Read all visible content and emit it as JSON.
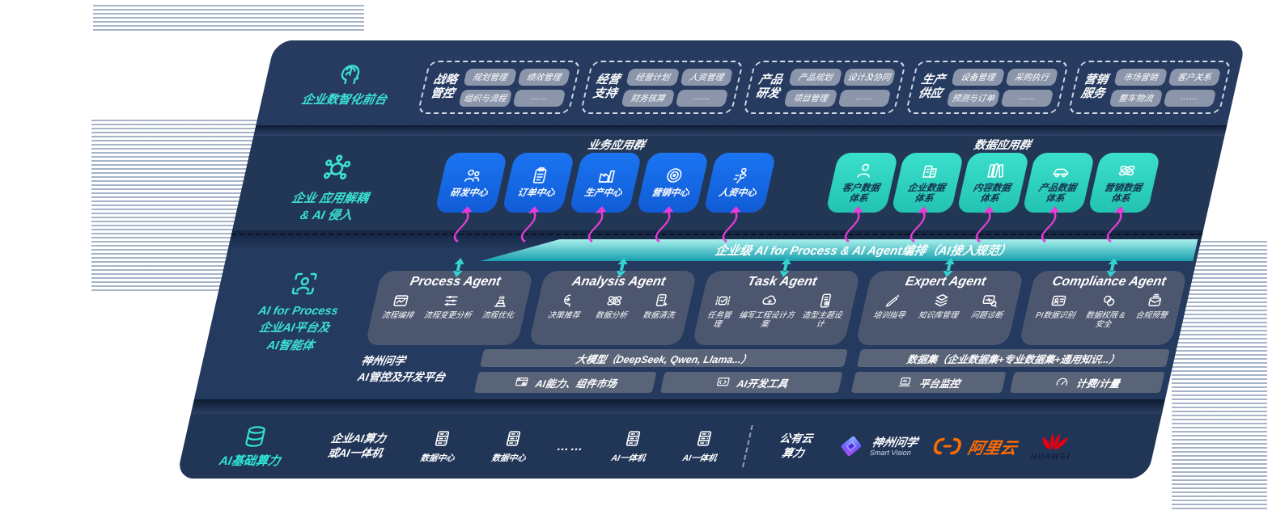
{
  "colors": {
    "panel_navy": "#24395c",
    "accent_teal": "#3be2d4",
    "box_blue": "#1668e3",
    "box_teal": "#2fd6c3",
    "bus_bar_teal": "#18a2b0",
    "arrow_magenta": "#e93cd7",
    "alibaba_orange": "#ff6c00",
    "huawei_red": "#e60012"
  },
  "front_layer": {
    "label": "企业数智化前台",
    "groups": [
      {
        "title": "战略\n管控",
        "chips": [
          "规划管理",
          "绩效管理",
          "组织与流程",
          "……"
        ]
      },
      {
        "title": "经营\n支持",
        "chips": [
          "经营计划",
          "人资管理",
          "财务核算",
          "……"
        ]
      },
      {
        "title": "产品\n研发",
        "chips": [
          "产品规划",
          "设计及协同",
          "项目管理",
          "……"
        ]
      },
      {
        "title": "生产\n供应",
        "chips": [
          "设备管理",
          "采购执行",
          "预测与订单",
          "……"
        ]
      },
      {
        "title": "营销\n服务",
        "chips": [
          "市场营销",
          "客户关系",
          "整车物流",
          "……"
        ]
      }
    ]
  },
  "decouple_layer": {
    "label": "企业 应用解耦\n& AI 侵入",
    "business_group": {
      "title": "业务应用群",
      "boxes": [
        {
          "label": "研发中心",
          "icon": "people"
        },
        {
          "label": "订单中心",
          "icon": "clipboard"
        },
        {
          "label": "生产中心",
          "icon": "factory"
        },
        {
          "label": "营销中心",
          "icon": "target"
        },
        {
          "label": "人资中心",
          "icon": "hr"
        }
      ]
    },
    "data_group": {
      "title": "数据应用群",
      "boxes": [
        {
          "label": "客户数据\n体系",
          "icon": "person"
        },
        {
          "label": "企业数据\n体系",
          "icon": "building"
        },
        {
          "label": "内容数据\n体系",
          "icon": "books"
        },
        {
          "label": "产品数据\n体系",
          "icon": "car"
        },
        {
          "label": "营销数据\n体系",
          "icon": "atom"
        }
      ]
    }
  },
  "ai_layer": {
    "label": "AI for Process\n企业AI平台及\nAI智能体",
    "bus_bar": "企业级 AI for Process & AI Agent编排（AI接入规范）",
    "agents": [
      {
        "title": "Process Agent",
        "items": [
          {
            "label": "流程编排",
            "icon": "flow"
          },
          {
            "label": "流程变更分析",
            "icon": "sliders"
          },
          {
            "label": "流程优化",
            "icon": "optimize"
          }
        ]
      },
      {
        "title": "Analysis Agent",
        "items": [
          {
            "label": "决策推荐",
            "icon": "decide"
          },
          {
            "label": "数据分析",
            "icon": "atom"
          },
          {
            "label": "数据清洗",
            "icon": "clean"
          }
        ]
      },
      {
        "title": "Task Agent",
        "items": [
          {
            "label": "任务管理",
            "icon": "task"
          },
          {
            "label": "编写工程设计方案",
            "icon": "cloud"
          },
          {
            "label": "造型主题设计",
            "icon": "design"
          }
        ]
      },
      {
        "title": "Expert Agent",
        "items": [
          {
            "label": "培训指导",
            "icon": "train"
          },
          {
            "label": "知识库管理",
            "icon": "stack"
          },
          {
            "label": "问题诊断",
            "icon": "diagnose"
          }
        ]
      },
      {
        "title": "Compliance Agent",
        "items": [
          {
            "label": "PI数据识别",
            "icon": "idcard"
          },
          {
            "label": "数据权限 &\n安全",
            "icon": "rings"
          },
          {
            "label": "合规预警",
            "icon": "alert"
          }
        ]
      }
    ],
    "platform": {
      "label": "神州问学\nAI管控及开发平台",
      "model_group": {
        "bar": "大模型（DeepSeek, Qwen, Llama...）",
        "cells": [
          {
            "label": "AI能力、组件市场",
            "icon": "market"
          },
          {
            "label": "AI开发工具",
            "icon": "tools"
          }
        ]
      },
      "data_group": {
        "bar": "数据集（企业数据集+专业数据集+通用知识...）",
        "cells": [
          {
            "label": "平台监控",
            "icon": "monitor"
          },
          {
            "label": "计费/计量",
            "icon": "gauge"
          }
        ]
      }
    }
  },
  "infra_layer": {
    "label": "AI基础算力",
    "compute": "企业AI算力\n或AI一体机",
    "nodes": [
      {
        "label": "数据中心",
        "icon": "server"
      },
      {
        "label": "数据中心",
        "icon": "server"
      },
      {
        "label": "……",
        "icon": "none"
      },
      {
        "label": "AI一体机",
        "icon": "server"
      },
      {
        "label": "AI一体机",
        "icon": "server"
      }
    ],
    "cloud": "公有云\n算力",
    "partners": {
      "smartvision": {
        "name": "神州问学",
        "sub": "Smart Vision"
      },
      "alibaba": "阿里云",
      "huawei": "HUAWEI"
    }
  }
}
